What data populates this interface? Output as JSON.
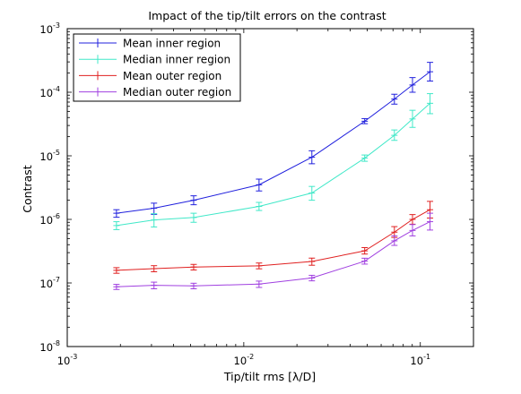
{
  "chart_data": {
    "type": "line",
    "title": "Impact of the tip/tilt errors on the contrast",
    "xlabel": "Tip/tilt rms [λ/D]",
    "ylabel": "Contrast",
    "xscale": "log",
    "yscale": "log",
    "xlim": [
      0.001,
      0.2
    ],
    "ylim": [
      1e-08,
      0.001
    ],
    "grid": false,
    "legend_position": "top-left",
    "x_ticks": [
      {
        "value": 0.001,
        "base": "10",
        "exp": "-3"
      },
      {
        "value": 0.01,
        "base": "10",
        "exp": "-2"
      },
      {
        "value": 0.1,
        "base": "10",
        "exp": "-1"
      }
    ],
    "y_ticks": [
      {
        "value": 1e-08,
        "base": "10",
        "exp": "-8"
      },
      {
        "value": 1e-07,
        "base": "10",
        "exp": "-7"
      },
      {
        "value": 1e-06,
        "base": "10",
        "exp": "-6"
      },
      {
        "value": 1e-05,
        "base": "10",
        "exp": "-5"
      },
      {
        "value": 0.0001,
        "base": "10",
        "exp": "-4"
      },
      {
        "value": 0.001,
        "base": "10",
        "exp": "-3"
      }
    ],
    "x": [
      0.0019,
      0.0031,
      0.0052,
      0.0122,
      0.0243,
      0.0484,
      0.0713,
      0.0903,
      0.1135
    ],
    "series": [
      {
        "name": "Mean inner region",
        "color": "#2020dd",
        "values": [
          1.25e-06,
          1.5e-06,
          2e-06,
          3.5e-06,
          9.5e-06,
          3.5e-05,
          7.8e-05,
          0.00013,
          0.00021
        ],
        "err_low": [
          1.08e-06,
          1.2e-06,
          1.7e-06,
          2.8e-06,
          7.5e-06,
          3.2e-05,
          6.5e-05,
          0.0001,
          0.00015
        ],
        "err_high": [
          1.42e-06,
          1.8e-06,
          2.35e-06,
          4.3e-06,
          1.2e-05,
          3.85e-05,
          9.3e-05,
          0.00017,
          0.000295
        ]
      },
      {
        "name": "Median inner region",
        "color": "#40e8c8",
        "values": [
          8e-07,
          9.8e-07,
          1.07e-06,
          1.6e-06,
          2.6e-06,
          9.2e-06,
          2.1e-05,
          3.8e-05,
          6.7e-05
        ],
        "err_low": [
          6.9e-07,
          7.6e-07,
          9e-07,
          1.38e-06,
          2e-06,
          8.2e-06,
          1.75e-05,
          2.8e-05,
          4.6e-05
        ],
        "err_high": [
          9.2e-07,
          1.23e-06,
          1.25e-06,
          1.85e-06,
          3.3e-06,
          1.03e-05,
          2.55e-05,
          5.2e-05,
          9.5e-05
        ]
      },
      {
        "name": "Mean outer region",
        "color": "#e02020",
        "values": [
          1.58e-07,
          1.68e-07,
          1.78e-07,
          1.86e-07,
          2.18e-07,
          3.2e-07,
          6.3e-07,
          1e-06,
          1.42e-06
        ],
        "err_low": [
          1.42e-07,
          1.5e-07,
          1.6e-07,
          1.67e-07,
          1.9e-07,
          2.85e-07,
          5.2e-07,
          8.4e-07,
          1.05e-06
        ],
        "err_high": [
          1.74e-07,
          1.87e-07,
          1.96e-07,
          2.06e-07,
          2.46e-07,
          3.6e-07,
          7.7e-07,
          1.19e-06,
          1.92e-06
        ]
      },
      {
        "name": "Median outer region",
        "color": "#a040e0",
        "values": [
          8.7e-08,
          9.2e-08,
          9e-08,
          9.6e-08,
          1.2e-07,
          2.2e-07,
          4.6e-07,
          6.7e-07,
          9.2e-07
        ],
        "err_low": [
          7.9e-08,
          8.1e-08,
          8.1e-08,
          8.5e-08,
          1.08e-07,
          1.98e-07,
          3.9e-07,
          5.5e-07,
          6.8e-07
        ],
        "err_high": [
          9.5e-08,
          1.03e-07,
          9.9e-08,
          1.07e-07,
          1.32e-07,
          2.45e-07,
          5.5e-07,
          8.3e-07,
          1.25e-06
        ]
      }
    ]
  }
}
